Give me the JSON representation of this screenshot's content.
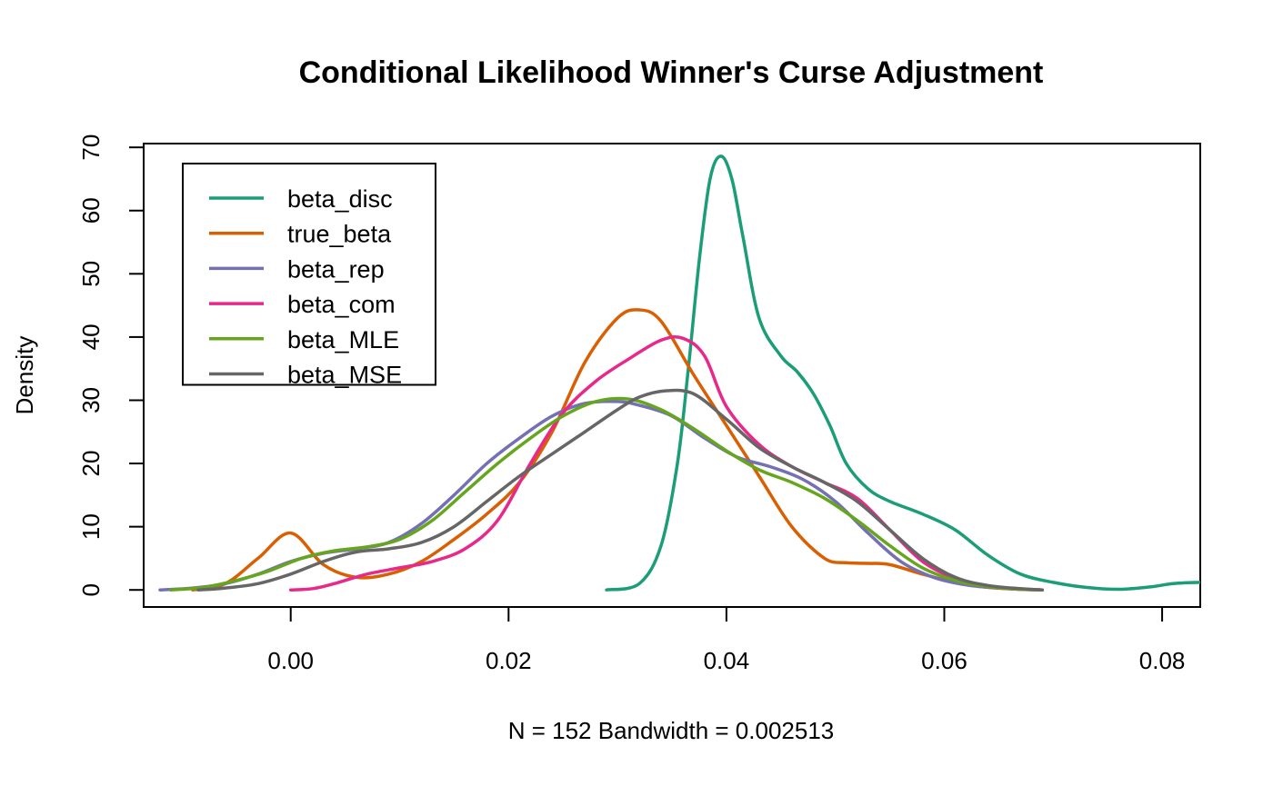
{
  "chart_data": {
    "type": "line",
    "title": "Conditional Likelihood Winner's Curse Adjustment",
    "xlabel": "N = 152   Bandwidth = 0.002513",
    "ylabel": "Density",
    "xlim": [
      -0.0135,
      0.0835
    ],
    "ylim": [
      -2.7,
      70.6
    ],
    "x_ticks": [
      0.0,
      0.02,
      0.04,
      0.06,
      0.08
    ],
    "x_tick_labels": [
      "0.00",
      "0.02",
      "0.04",
      "0.06",
      "0.08"
    ],
    "y_ticks": [
      0,
      10,
      20,
      30,
      40,
      50,
      60,
      70
    ],
    "y_tick_labels": [
      "0",
      "10",
      "20",
      "30",
      "40",
      "50",
      "60",
      "70"
    ],
    "grid": false,
    "legend_position": "top-left",
    "series": [
      {
        "name": "beta_disc",
        "color": "#1B9E77",
        "x": [
          0.029,
          0.032,
          0.034,
          0.0355,
          0.0365,
          0.0375,
          0.0385,
          0.0395,
          0.0405,
          0.0415,
          0.043,
          0.045,
          0.0465,
          0.048,
          0.0495,
          0.051,
          0.053,
          0.055,
          0.058,
          0.061,
          0.064,
          0.067,
          0.07,
          0.073,
          0.076,
          0.079,
          0.081,
          0.0835
        ],
        "y": [
          0.0,
          1.0,
          7.0,
          20.0,
          35.0,
          52.0,
          65.0,
          68.6,
          65.0,
          56.0,
          43.0,
          37.0,
          34.5,
          31.0,
          26.0,
          20.0,
          16.0,
          14.0,
          12.0,
          9.5,
          5.5,
          2.5,
          1.2,
          0.4,
          0.1,
          0.5,
          1.0,
          1.2
        ]
      },
      {
        "name": "true_beta",
        "color": "#D95F02",
        "x": [
          -0.009,
          -0.006,
          -0.003,
          0.0,
          0.003,
          0.006,
          0.009,
          0.012,
          0.015,
          0.018,
          0.021,
          0.024,
          0.027,
          0.03,
          0.032,
          0.034,
          0.037,
          0.04,
          0.043,
          0.046,
          0.049,
          0.051,
          0.053,
          0.055,
          0.058,
          0.061,
          0.064,
          0.067,
          0.069
        ],
        "y": [
          0.0,
          1.0,
          5.0,
          9.0,
          4.0,
          2.0,
          2.5,
          4.5,
          8.0,
          12.0,
          17.0,
          25.0,
          36.0,
          43.0,
          44.3,
          42.5,
          34.0,
          26.0,
          18.0,
          10.0,
          5.0,
          4.3,
          4.2,
          4.0,
          2.5,
          1.2,
          0.4,
          0.1,
          0.0
        ]
      },
      {
        "name": "beta_rep",
        "color": "#7570B3",
        "x": [
          -0.012,
          -0.009,
          -0.006,
          -0.003,
          0.0,
          0.003,
          0.006,
          0.009,
          0.012,
          0.015,
          0.018,
          0.021,
          0.024,
          0.027,
          0.03,
          0.032,
          0.035,
          0.038,
          0.041,
          0.044,
          0.047,
          0.05,
          0.053,
          0.056,
          0.059,
          0.062,
          0.065,
          0.069
        ],
        "y": [
          0.0,
          0.3,
          1.0,
          2.5,
          4.5,
          5.8,
          6.5,
          7.5,
          10.5,
          15.0,
          20.0,
          24.0,
          27.5,
          29.5,
          29.8,
          29.2,
          27.5,
          24.0,
          21.0,
          19.5,
          17.5,
          14.0,
          9.0,
          4.5,
          2.0,
          0.8,
          0.3,
          0.0
        ]
      },
      {
        "name": "beta_com",
        "color": "#E7298A",
        "x": [
          0.0,
          0.002,
          0.004,
          0.007,
          0.01,
          0.013,
          0.016,
          0.019,
          0.022,
          0.025,
          0.028,
          0.031,
          0.034,
          0.036,
          0.038,
          0.04,
          0.043,
          0.046,
          0.049,
          0.052,
          0.055,
          0.058,
          0.061,
          0.064,
          0.067,
          0.069
        ],
        "y": [
          0.0,
          0.2,
          1.0,
          2.5,
          3.5,
          4.5,
          6.5,
          11.0,
          20.0,
          28.0,
          33.0,
          36.5,
          39.5,
          39.8,
          37.0,
          29.0,
          23.0,
          19.5,
          17.0,
          14.5,
          9.5,
          4.5,
          1.8,
          0.5,
          0.1,
          0.0
        ]
      },
      {
        "name": "beta_MLE",
        "color": "#66A61E",
        "x": [
          -0.011,
          -0.008,
          -0.005,
          -0.002,
          0.001,
          0.004,
          0.007,
          0.01,
          0.013,
          0.016,
          0.019,
          0.022,
          0.025,
          0.028,
          0.031,
          0.034,
          0.037,
          0.04,
          0.043,
          0.046,
          0.049,
          0.052,
          0.055,
          0.058,
          0.061,
          0.064,
          0.067,
          0.069
        ],
        "y": [
          0.0,
          0.4,
          1.5,
          3.0,
          5.0,
          6.2,
          6.8,
          8.0,
          11.0,
          15.5,
          20.0,
          24.0,
          27.5,
          29.8,
          30.2,
          28.5,
          25.5,
          22.0,
          19.0,
          17.0,
          14.5,
          11.0,
          7.0,
          3.5,
          1.5,
          0.5,
          0.1,
          0.0
        ]
      },
      {
        "name": "beta_MSE",
        "color": "#666666",
        "x": [
          -0.0085,
          -0.006,
          -0.003,
          0.0,
          0.003,
          0.006,
          0.009,
          0.012,
          0.015,
          0.018,
          0.021,
          0.024,
          0.027,
          0.03,
          0.032,
          0.0345,
          0.037,
          0.04,
          0.043,
          0.046,
          0.049,
          0.052,
          0.055,
          0.058,
          0.061,
          0.064,
          0.067,
          0.069
        ],
        "y": [
          0.0,
          0.3,
          1.0,
          2.5,
          4.5,
          6.0,
          6.5,
          7.5,
          10.0,
          14.0,
          18.0,
          21.5,
          25.0,
          28.5,
          30.5,
          31.5,
          31.0,
          27.0,
          22.5,
          19.5,
          17.0,
          14.0,
          9.5,
          5.0,
          2.0,
          0.7,
          0.2,
          0.0
        ]
      }
    ]
  }
}
